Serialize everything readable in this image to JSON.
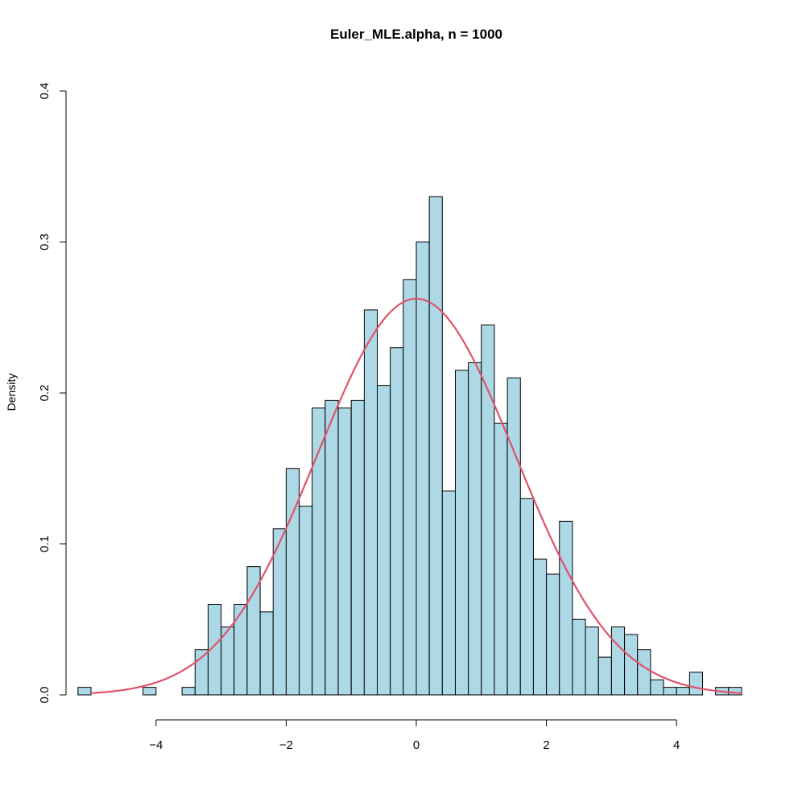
{
  "chart_data": {
    "type": "bar",
    "title": "Euler_MLE.alpha, n = 1000",
    "xlabel": "",
    "ylabel": "Density",
    "xlim": [
      -5.2,
      5.0
    ],
    "ylim": [
      0,
      0.4
    ],
    "x_ticks": [
      -4,
      -2,
      0,
      2,
      4
    ],
    "x_tick_labels": [
      "−4",
      "−2",
      "0",
      "2",
      "4"
    ],
    "y_ticks": [
      0.0,
      0.1,
      0.2,
      0.3,
      0.4
    ],
    "y_tick_labels": [
      "0.0",
      "0.1",
      "0.2",
      "0.3",
      "0.4"
    ],
    "grid": false,
    "legend": "none",
    "bin_width": 0.2,
    "bins": [
      {
        "start": -5.2,
        "density": 0.005
      },
      {
        "start": -5.0,
        "density": 0.0
      },
      {
        "start": -4.8,
        "density": 0.0
      },
      {
        "start": -4.6,
        "density": 0.0
      },
      {
        "start": -4.4,
        "density": 0.0
      },
      {
        "start": -4.2,
        "density": 0.005
      },
      {
        "start": -4.0,
        "density": 0.0
      },
      {
        "start": -3.8,
        "density": 0.0
      },
      {
        "start": -3.6,
        "density": 0.005
      },
      {
        "start": -3.4,
        "density": 0.03
      },
      {
        "start": -3.2,
        "density": 0.06
      },
      {
        "start": -3.0,
        "density": 0.045
      },
      {
        "start": -2.8,
        "density": 0.06
      },
      {
        "start": -2.6,
        "density": 0.085
      },
      {
        "start": -2.4,
        "density": 0.055
      },
      {
        "start": -2.2,
        "density": 0.11
      },
      {
        "start": -2.0,
        "density": 0.15
      },
      {
        "start": -1.8,
        "density": 0.125
      },
      {
        "start": -1.6,
        "density": 0.19
      },
      {
        "start": -1.4,
        "density": 0.195
      },
      {
        "start": -1.2,
        "density": 0.19
      },
      {
        "start": -1.0,
        "density": 0.195
      },
      {
        "start": -0.8,
        "density": 0.255
      },
      {
        "start": -0.6,
        "density": 0.205
      },
      {
        "start": -0.4,
        "density": 0.23
      },
      {
        "start": -0.2,
        "density": 0.275
      },
      {
        "start": 0.0,
        "density": 0.3
      },
      {
        "start": 0.2,
        "density": 0.33
      },
      {
        "start": 0.4,
        "density": 0.135
      },
      {
        "start": 0.6,
        "density": 0.215
      },
      {
        "start": 0.8,
        "density": 0.22
      },
      {
        "start": 1.0,
        "density": 0.245
      },
      {
        "start": 1.2,
        "density": 0.18
      },
      {
        "start": 1.4,
        "density": 0.21
      },
      {
        "start": 1.6,
        "density": 0.13
      },
      {
        "start": 1.8,
        "density": 0.09
      },
      {
        "start": 2.0,
        "density": 0.08
      },
      {
        "start": 2.2,
        "density": 0.115
      },
      {
        "start": 2.4,
        "density": 0.05
      },
      {
        "start": 2.6,
        "density": 0.045
      },
      {
        "start": 2.8,
        "density": 0.025
      },
      {
        "start": 3.0,
        "density": 0.045
      },
      {
        "start": 3.2,
        "density": 0.04
      },
      {
        "start": 3.4,
        "density": 0.03
      },
      {
        "start": 3.6,
        "density": 0.01
      },
      {
        "start": 3.8,
        "density": 0.005
      },
      {
        "start": 4.0,
        "density": 0.005
      },
      {
        "start": 4.2,
        "density": 0.015
      },
      {
        "start": 4.4,
        "density": 0.0
      },
      {
        "start": 4.6,
        "density": 0.005
      },
      {
        "start": 4.8,
        "density": 0.005
      }
    ],
    "curve": {
      "type": "normal-density",
      "mean": 0.0,
      "sd": 1.52,
      "x_range": [
        -5.0,
        5.0
      ]
    },
    "colors": {
      "bar_fill": "#add8e6",
      "bar_stroke": "#000000",
      "curve": "#df536b"
    }
  }
}
